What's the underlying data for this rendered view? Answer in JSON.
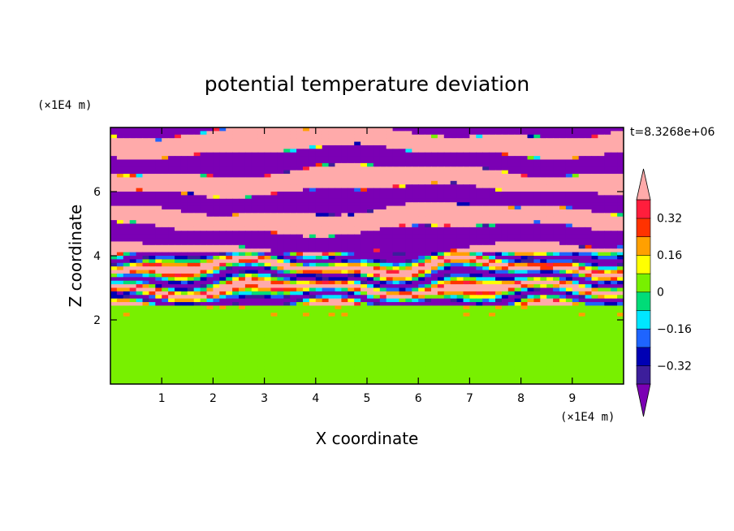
{
  "chart_data": {
    "type": "heatmap",
    "title": "potential temperature deviation",
    "xlabel": "X coordinate",
    "ylabel": "Z coordinate",
    "x_unit": "(×1E4 m)",
    "z_unit": "(×1E4 m)",
    "time_label": "t=8.3268e+06",
    "xlim": [
      0,
      10
    ],
    "ylim": [
      0,
      8
    ],
    "x_ticks": [
      1,
      2,
      3,
      4,
      5,
      6,
      7,
      8,
      9
    ],
    "y_ticks": [
      2,
      4,
      6
    ],
    "colorbar": {
      "levels": [
        -0.4,
        -0.32,
        -0.24,
        -0.16,
        -0.08,
        0,
        0.08,
        0.16,
        0.24,
        0.32,
        0.4
      ],
      "colors": [
        "#7b00b4",
        "#3c1e9b",
        "#0000b4",
        "#1e64ff",
        "#00e6ff",
        "#00dc78",
        "#78f000",
        "#ffff00",
        "#ffa000",
        "#ff3200",
        "#ff1e3c",
        "#ffaaaa"
      ],
      "labels": [
        "0.32",
        "0.16",
        "0",
        "-0.16",
        "-0.32"
      ],
      "label_values": [
        0.32,
        0.16,
        0,
        -0.16,
        -0.32
      ]
    },
    "field_description": {
      "upper_layer": "alternating bands of about +0.4 and -0.4 between z≈4 and z≈8",
      "middle_layer": "mixed small-scale structures between z≈2.5 and z≈4",
      "lower_layer": "values near 0 to +0.08 below z≈2.3"
    }
  }
}
